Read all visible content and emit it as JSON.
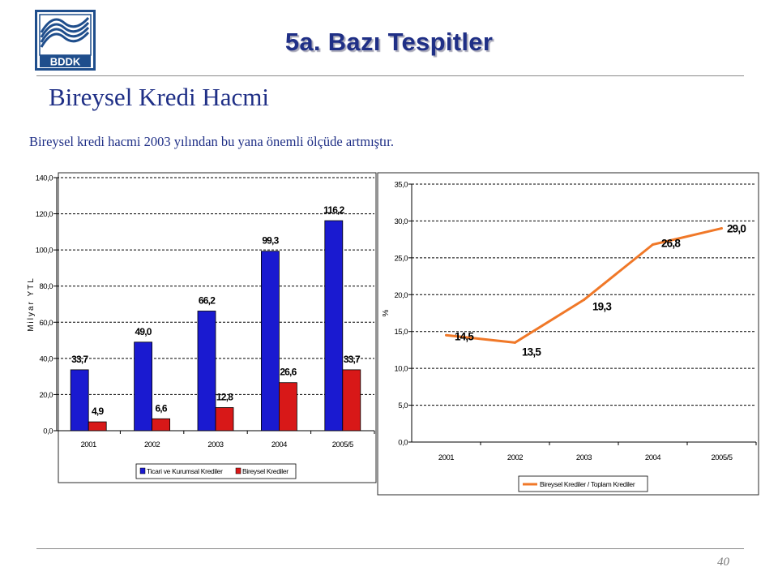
{
  "logo": {
    "text": "BDDK",
    "color": "#1f4e8c"
  },
  "header": {
    "title": "5a. Bazı Tespitler"
  },
  "section": {
    "title": "Bireysel Kredi Hacmi",
    "description": "Bireysel kredi hacmi 2003 yılından bu yana önemli ölçüde artmıştır."
  },
  "footer": {
    "page_number": "40"
  },
  "chart_data": [
    {
      "type": "bar",
      "categories": [
        "2001",
        "2002",
        "2003",
        "2004",
        "2005/5"
      ],
      "ylabel": "Milyar YTL",
      "ylim": [
        0,
        140
      ],
      "yticks": [
        "0,0",
        "20,0",
        "40,0",
        "60,0",
        "80,0",
        "100,0",
        "120,0",
        "140,0"
      ],
      "grid": true,
      "legend_position": "bottom",
      "series": [
        {
          "name": "Ticari ve Kurumsal Krediler",
          "color": "#1a1ad0",
          "values": [
            33.7,
            49.0,
            66.2,
            99.3,
            116.2
          ],
          "labels": [
            "33,7",
            "49,0",
            "66,2",
            "99,3",
            "116,2"
          ]
        },
        {
          "name": "Bireysel Krediler",
          "color": "#d81818",
          "values": [
            4.9,
            6.6,
            12.8,
            26.6,
            33.7
          ],
          "labels": [
            "4,9",
            "6,6",
            "12,8",
            "26,6",
            "33,7"
          ]
        }
      ]
    },
    {
      "type": "line",
      "categories": [
        "2001",
        "2002",
        "2003",
        "2004",
        "2005/5"
      ],
      "ylabel": "%",
      "ylim": [
        0,
        35
      ],
      "yticks": [
        "0,0",
        "5,0",
        "10,0",
        "15,0",
        "20,0",
        "25,0",
        "30,0",
        "35,0"
      ],
      "grid": true,
      "legend_position": "bottom",
      "series": [
        {
          "name": "Bireysel Krediler / Toplam Krediler",
          "color": "#f07828",
          "values": [
            14.5,
            13.5,
            19.3,
            26.8,
            29.0
          ],
          "labels": [
            "14,5",
            "13,5",
            "19,3",
            "26,8",
            "29,0"
          ]
        }
      ]
    }
  ]
}
